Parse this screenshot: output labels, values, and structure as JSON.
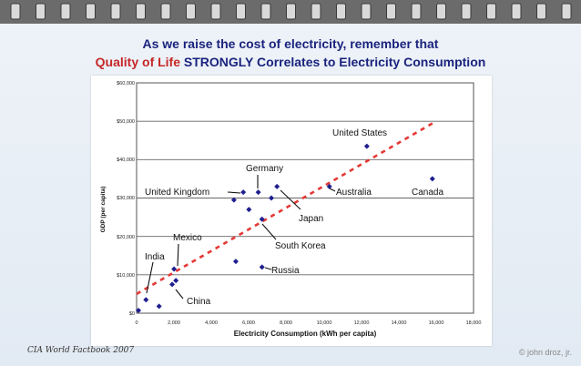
{
  "title": {
    "line1": "As we raise the cost of electricity, remember that",
    "line2_highlight": "Quality of Life",
    "line2_rest": " STRONGLY Correlates to Electricity Consumption"
  },
  "footer": {
    "source": "CIA World Factbook 2007",
    "credit": "© john droz, jr."
  },
  "colors": {
    "title_blue": "#1a237e",
    "title_red": "#c62828",
    "point": "#1f1f8f",
    "trendline": "#e53935"
  },
  "chart_data": {
    "type": "scatter",
    "xlabel": "Electricity Consumption (kWh per capita)",
    "ylabel": "GDP (per capita)",
    "xlim": [
      0,
      18000
    ],
    "ylim": [
      0,
      60000
    ],
    "xticks": [
      "0",
      "2,000",
      "4,000",
      "6,000",
      "8,000",
      "10,000",
      "12,000",
      "14,000",
      "16,000",
      "18,000"
    ],
    "yticks": [
      "$0",
      "$10,000",
      "$20,000",
      "$30,000",
      "$40,000",
      "$50,000",
      "$60,000"
    ],
    "grid": true,
    "points": [
      {
        "x": 100,
        "y": 700
      },
      {
        "x": 500,
        "y": 3500
      },
      {
        "x": 1200,
        "y": 1800
      },
      {
        "x": 1900,
        "y": 7500
      },
      {
        "x": 2100,
        "y": 8500
      },
      {
        "x": 2000,
        "y": 11500
      },
      {
        "x": 5300,
        "y": 13500
      },
      {
        "x": 6700,
        "y": 12000
      },
      {
        "x": 5200,
        "y": 29500
      },
      {
        "x": 5700,
        "y": 31500
      },
      {
        "x": 6000,
        "y": 27000
      },
      {
        "x": 6500,
        "y": 31500
      },
      {
        "x": 6700,
        "y": 24500
      },
      {
        "x": 7200,
        "y": 30000
      },
      {
        "x": 7500,
        "y": 33000
      },
      {
        "x": 10300,
        "y": 33000
      },
      {
        "x": 12300,
        "y": 43500
      },
      {
        "x": 15800,
        "y": 35000
      }
    ],
    "trendline": {
      "x": [
        0,
        16000
      ],
      "y": [
        5000,
        50000
      ]
    },
    "annotations": [
      {
        "text": "United States"
      },
      {
        "text": "Germany"
      },
      {
        "text": "United Kingdom"
      },
      {
        "text": "Australia"
      },
      {
        "text": "Canada"
      },
      {
        "text": "Japan"
      },
      {
        "text": "South Korea"
      },
      {
        "text": "Mexico"
      },
      {
        "text": "India"
      },
      {
        "text": "Russia"
      },
      {
        "text": "China"
      }
    ]
  }
}
